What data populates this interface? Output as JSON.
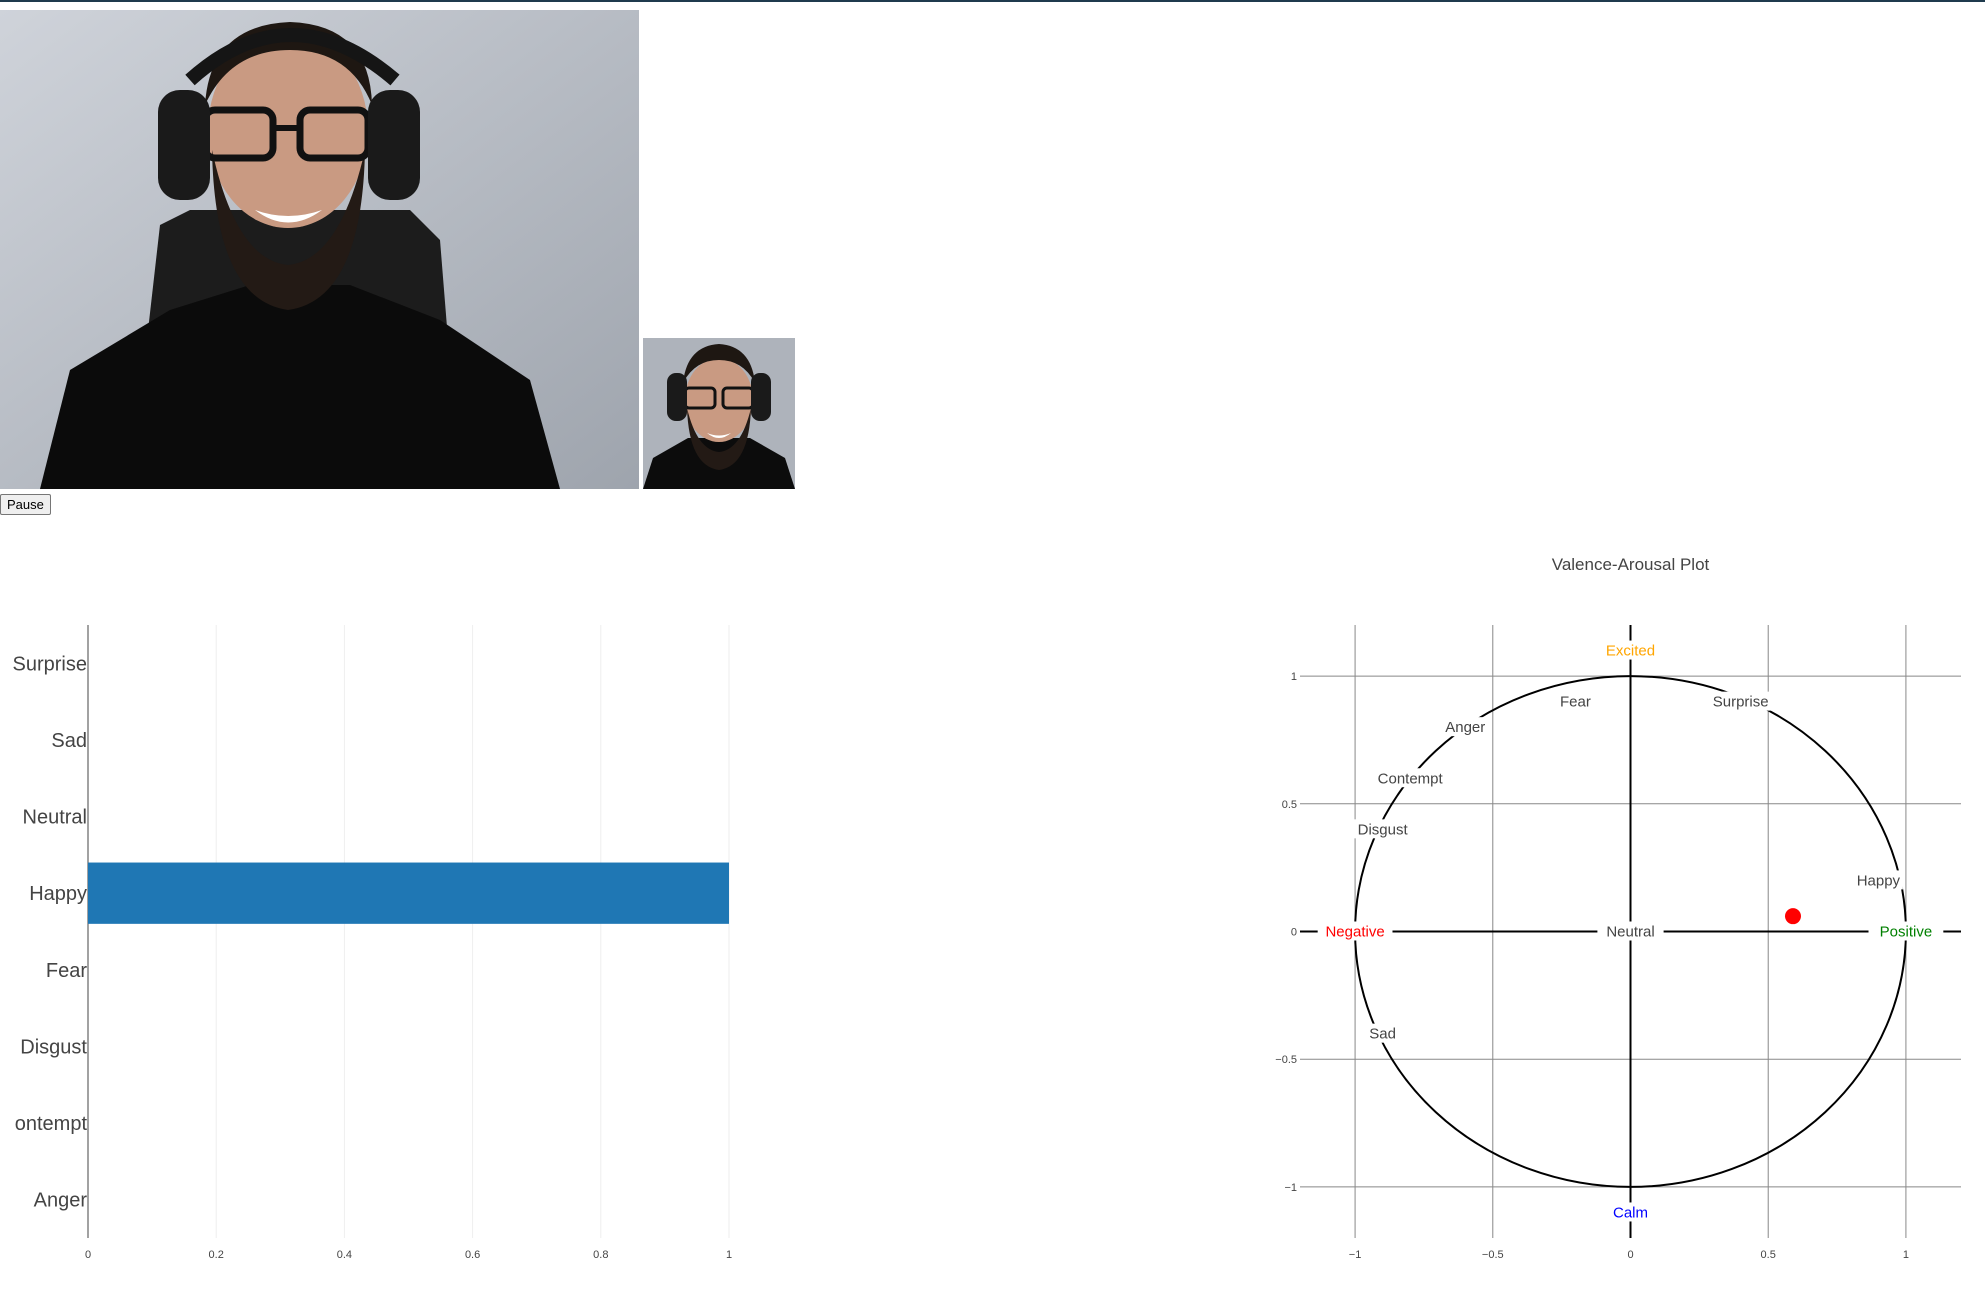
{
  "controls": {
    "pause_label": "Pause"
  },
  "colors": {
    "bar": "#1f77b4",
    "point": "#ff0000",
    "positive": "#008000",
    "negative": "#ff0000",
    "excited": "#ffa500",
    "calm": "#0000ff"
  },
  "chart_data": [
    {
      "type": "bar",
      "orientation": "horizontal",
      "categories": [
        "Anger",
        "ontempt",
        "Disgust",
        "Fear",
        "Happy",
        "Neutral",
        "Sad",
        "Surprise"
      ],
      "values": [
        0,
        0,
        0,
        0,
        1,
        0,
        0,
        0
      ],
      "xlim": [
        0,
        1
      ],
      "xticks": [
        "0",
        "0.2",
        "0.4",
        "0.6",
        "0.8",
        "1"
      ],
      "grid": "vertical"
    },
    {
      "type": "scatter",
      "title": "Valence-Arousal Plot",
      "xlim": [
        -1.2,
        1.2
      ],
      "ylim": [
        -1.2,
        1.2
      ],
      "xticks": [
        "−1",
        "−0.5",
        "0",
        "0.5",
        "1"
      ],
      "yticks": [
        "−1",
        "−0.5",
        "0",
        "0.5",
        "1"
      ],
      "grid": "on",
      "circle_radius": 1,
      "point": {
        "x": 0.59,
        "y": 0.06
      },
      "annotations": [
        {
          "text": "Excited",
          "x": 0,
          "y": 1.1,
          "color": "#ffa500"
        },
        {
          "text": "Calm",
          "x": 0,
          "y": -1.1,
          "color": "#0000ff"
        },
        {
          "text": "Positive",
          "x": 1.0,
          "y": 0,
          "color": "#008000"
        },
        {
          "text": "Negative",
          "x": -1.0,
          "y": 0,
          "color": "#ff0000"
        },
        {
          "text": "Neutral",
          "x": 0,
          "y": 0,
          "color": "#444444"
        },
        {
          "text": "Fear",
          "x": -0.2,
          "y": 0.9,
          "color": "#444444"
        },
        {
          "text": "Surprise",
          "x": 0.4,
          "y": 0.9,
          "color": "#444444"
        },
        {
          "text": "Anger",
          "x": -0.6,
          "y": 0.8,
          "color": "#444444"
        },
        {
          "text": "Contempt",
          "x": -0.8,
          "y": 0.6,
          "color": "#444444"
        },
        {
          "text": "Disgust",
          "x": -0.9,
          "y": 0.4,
          "color": "#444444"
        },
        {
          "text": "Happy",
          "x": 0.9,
          "y": 0.2,
          "color": "#444444"
        },
        {
          "text": "Sad",
          "x": -0.9,
          "y": -0.4,
          "color": "#444444"
        }
      ]
    }
  ]
}
